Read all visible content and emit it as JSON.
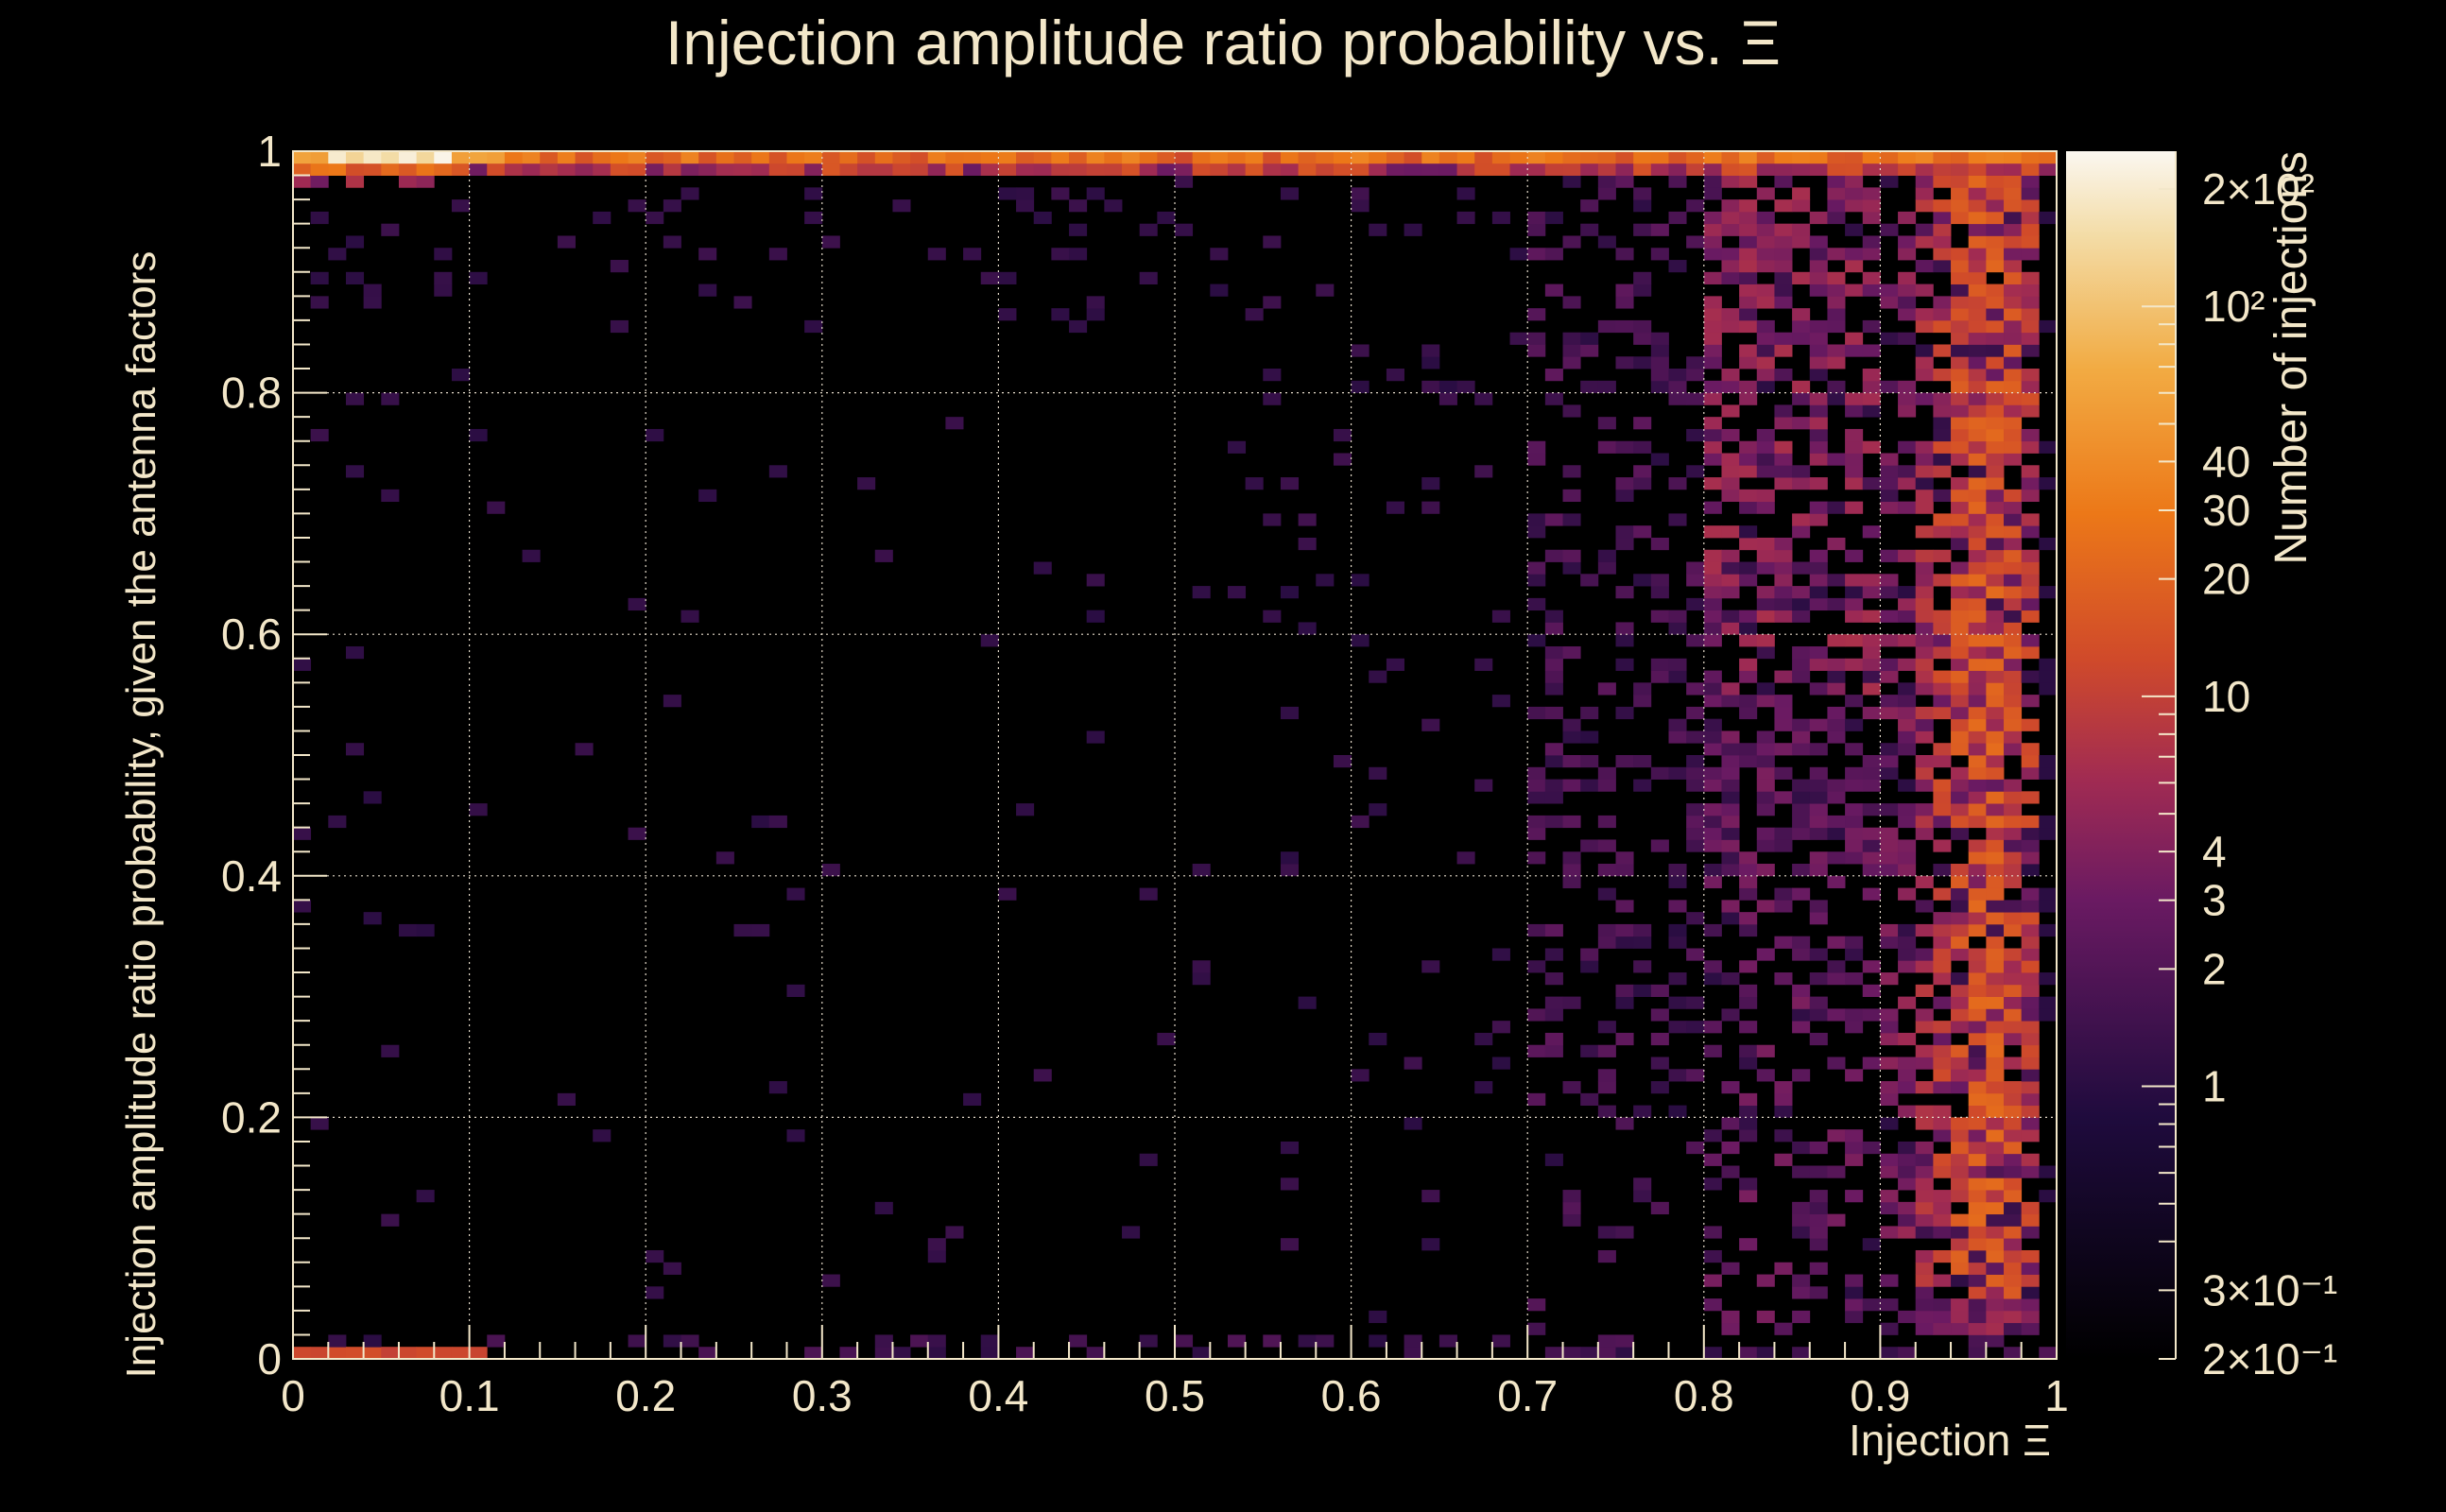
{
  "chart_data": {
    "type": "heatmap",
    "title": "Injection amplitude ratio probability vs.  Ξ",
    "xlabel": "Injection Ξ",
    "ylabel": "Injection amplitude ratio probability, given the antenna factors",
    "zlabel": "Number of injections",
    "xlim": [
      0,
      1
    ],
    "ylim": [
      0,
      1
    ],
    "zscale": "log",
    "zlim": [
      0.2,
      250
    ],
    "bins": {
      "x": 100,
      "y": 100
    },
    "grid": true,
    "x_ticks": [
      "0",
      "0.1",
      "0.2",
      "0.3",
      "0.4",
      "0.5",
      "0.6",
      "0.7",
      "0.8",
      "0.9",
      "1"
    ],
    "y_ticks": [
      "0",
      "0.2",
      "0.4",
      "0.6",
      "0.8",
      "1"
    ],
    "z_ticks": [
      {
        "value": 0.2,
        "label": "2×10⁻¹"
      },
      {
        "value": 0.3,
        "label": "3×10⁻¹"
      },
      {
        "value": 1,
        "label": "1"
      },
      {
        "value": 2,
        "label": "2"
      },
      {
        "value": 3,
        "label": "3"
      },
      {
        "value": 4,
        "label": "4"
      },
      {
        "value": 10,
        "label": "10"
      },
      {
        "value": 20,
        "label": "20"
      },
      {
        "value": 30,
        "label": "30"
      },
      {
        "value": 40,
        "label": "40"
      },
      {
        "value": 100,
        "label": "10²"
      },
      {
        "value": 200,
        "label": "2×10²"
      }
    ],
    "description_of_density": [
      {
        "region": "top row y~0.99-1.0 across all x",
        "counts": "10-40, peak ~200 near x=0.03-0.07"
      },
      {
        "region": "y~0.95-0.99 near x=0-0.06",
        "counts": "3-10"
      },
      {
        "region": "x=0.9-0.99, y=0.05-0.95",
        "counts": "3-30, band peak ~20 near x=0.95-0.97"
      },
      {
        "region": "x=0.8-0.9, y=0.4-0.97",
        "counts": "1-10"
      },
      {
        "region": "x=0.7-0.8, y=0.2-0.97",
        "counts": "0-3 sparse"
      },
      {
        "region": "x<0.7, interior",
        "counts": "sparse single counts (1)"
      },
      {
        "region": "bottom row y~0-0.01, x<0.1",
        "counts": "~10"
      }
    ],
    "colormap": [
      "#000004",
      "#1b0c41",
      "#4a0c6b",
      "#781c6d",
      "#a52c60",
      "#cf4446",
      "#ed6925",
      "#fb9b06",
      "#f7d13d",
      "#fcffa4"
    ]
  }
}
